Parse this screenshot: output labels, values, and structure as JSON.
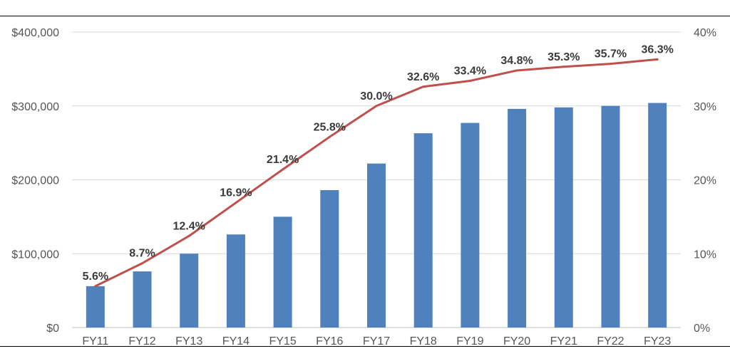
{
  "chart_data": {
    "type": "bar",
    "categories": [
      "FY11",
      "FY12",
      "FY13",
      "FY14",
      "FY15",
      "FY16",
      "FY17",
      "FY18",
      "FY19",
      "FY20",
      "FY21",
      "FY22",
      "FY23"
    ],
    "series": [
      {
        "type": "bar",
        "axis": "left",
        "color": "#4f81bd",
        "values": [
          56000,
          76000,
          100000,
          126000,
          150000,
          186000,
          222000,
          263000,
          277000,
          296000,
          298000,
          300000,
          304000
        ]
      },
      {
        "type": "line",
        "axis": "right",
        "color": "#c0504d",
        "values": [
          5.6,
          8.7,
          12.4,
          16.9,
          21.4,
          25.8,
          30.0,
          32.6,
          33.4,
          34.8,
          35.3,
          35.7,
          36.3
        ],
        "labels": [
          "5.6%",
          "8.7%",
          "12.4%",
          "16.9%",
          "21.4%",
          "25.8%",
          "30.0%",
          "32.6%",
          "33.4%",
          "34.8%",
          "35.3%",
          "35.7%",
          "36.3%"
        ]
      }
    ],
    "y_left": {
      "ylim": [
        0,
        400000
      ],
      "ticks": [
        "$0",
        "$100,000",
        "$200,000",
        "$300,000",
        "$400,000"
      ]
    },
    "y_right": {
      "ylim": [
        0,
        40
      ],
      "ticks": [
        "0%",
        "10%",
        "20%",
        "30%",
        "40%"
      ]
    },
    "grid": true,
    "legend": "none"
  }
}
